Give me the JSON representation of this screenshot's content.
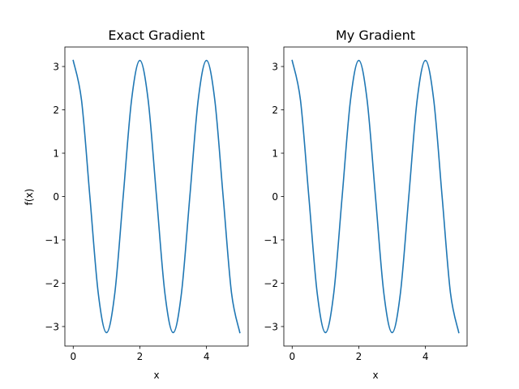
{
  "chart_data": [
    {
      "type": "line",
      "title": "Exact Gradient",
      "xlabel": "x",
      "ylabel": "f(x)",
      "xlim": [
        -0.25,
        5.25
      ],
      "ylim": [
        -3.45,
        3.45
      ],
      "xticks": [
        0,
        2,
        4
      ],
      "xtick_labels": [
        "0",
        "2",
        "4"
      ],
      "yticks": [
        -3,
        -2,
        -1,
        0,
        1,
        2,
        3
      ],
      "ytick_labels": [
        "−3",
        "−2",
        "−1",
        "0",
        "1",
        "2",
        "3"
      ],
      "grid": false,
      "series": [
        {
          "color": "#1f77b4",
          "x": [
            0,
            0.25,
            0.5,
            0.75,
            1,
            1.25,
            1.5,
            1.75,
            2,
            2.25,
            2.5,
            2.75,
            3,
            3.25,
            3.5,
            3.75,
            4,
            4.25,
            4.5,
            4.75,
            5
          ],
          "y": [
            3.14,
            2.22,
            0,
            -2.22,
            -3.14,
            -2.22,
            0,
            2.22,
            3.14,
            2.22,
            0,
            -2.22,
            -3.14,
            -2.22,
            0,
            2.22,
            3.14,
            2.22,
            0,
            -2.22,
            -3.14
          ]
        }
      ]
    },
    {
      "type": "line",
      "title": "My Gradient",
      "xlabel": "x",
      "ylabel": "",
      "xlim": [
        -0.25,
        5.25
      ],
      "ylim": [
        -3.45,
        3.45
      ],
      "xticks": [
        0,
        2,
        4
      ],
      "xtick_labels": [
        "0",
        "2",
        "4"
      ],
      "yticks": [
        -3,
        -2,
        -1,
        0,
        1,
        2,
        3
      ],
      "ytick_labels": [
        "−3",
        "−2",
        "−1",
        "0",
        "1",
        "2",
        "3"
      ],
      "grid": false,
      "series": [
        {
          "color": "#1f77b4",
          "x": [
            0,
            0.25,
            0.5,
            0.75,
            1,
            1.25,
            1.5,
            1.75,
            2,
            2.25,
            2.5,
            2.75,
            3,
            3.25,
            3.5,
            3.75,
            4,
            4.25,
            4.5,
            4.75,
            5
          ],
          "y": [
            3.14,
            2.22,
            0,
            -2.22,
            -3.14,
            -2.22,
            0,
            2.22,
            3.14,
            2.22,
            0,
            -2.22,
            -3.14,
            -2.22,
            0,
            2.22,
            3.14,
            2.22,
            0,
            -2.22,
            -3.14
          ]
        }
      ]
    }
  ]
}
